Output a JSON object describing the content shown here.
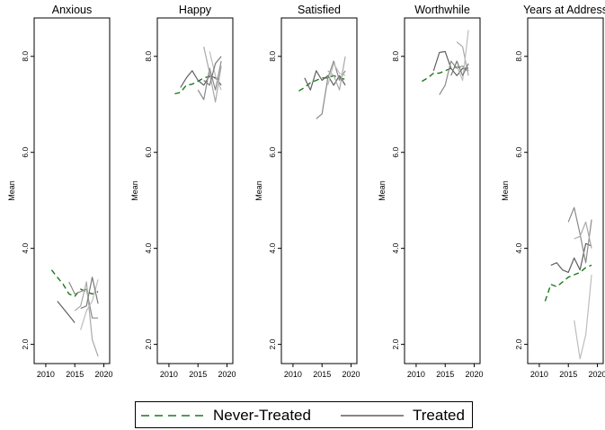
{
  "chart_data": [
    {
      "type": "line",
      "title": "Anxious",
      "ylabel": "Mean",
      "xlim": [
        2008,
        2021
      ],
      "ylim": [
        1.6,
        8.8
      ],
      "xticks": [
        "2010",
        "2015",
        "2020"
      ],
      "yticks": [
        "2.0",
        "4.0",
        "6.0",
        "8.0"
      ],
      "series": [
        {
          "group": "never",
          "values": [
            [
              2011,
              3.55
            ],
            [
              2012,
              3.4
            ],
            [
              2013,
              3.25
            ],
            [
              2014,
              3.05
            ],
            [
              2015,
              3.0
            ],
            [
              2016,
              3.15
            ],
            [
              2017,
              3.1
            ],
            [
              2018,
              3.05
            ],
            [
              2019,
              3.1
            ]
          ]
        },
        {
          "group": "treated",
          "values": [
            [
              2012,
              2.9
            ],
            [
              2013,
              2.75
            ],
            [
              2014,
              2.6
            ],
            [
              2015,
              2.45
            ]
          ]
        },
        {
          "group": "treated",
          "values": [
            [
              2014,
              3.3
            ],
            [
              2015,
              3.05
            ],
            [
              2016,
              3.1
            ],
            [
              2017,
              3.15
            ],
            [
              2018,
              2.55
            ],
            [
              2019,
              2.55
            ]
          ]
        },
        {
          "group": "treated",
          "values": [
            [
              2015,
              2.7
            ],
            [
              2016,
              2.8
            ],
            [
              2017,
              3.3
            ],
            [
              2018,
              2.1
            ],
            [
              2019,
              1.75
            ]
          ]
        },
        {
          "group": "treated",
          "values": [
            [
              2016,
              2.3
            ],
            [
              2017,
              2.7
            ],
            [
              2018,
              2.9
            ],
            [
              2019,
              3.35
            ]
          ]
        },
        {
          "group": "treated",
          "values": [
            [
              2016,
              2.75
            ],
            [
              2017,
              2.8
            ],
            [
              2018,
              3.4
            ],
            [
              2019,
              2.85
            ]
          ]
        }
      ]
    },
    {
      "type": "line",
      "title": "Happy",
      "ylabel": "Mean",
      "xlim": [
        2008,
        2021
      ],
      "ylim": [
        1.6,
        8.8
      ],
      "xticks": [
        "2010",
        "2015",
        "2020"
      ],
      "yticks": [
        "2.0",
        "4.0",
        "6.0",
        "8.0"
      ],
      "series": [
        {
          "group": "never",
          "values": [
            [
              2011,
              7.22
            ],
            [
              2012,
              7.25
            ],
            [
              2013,
              7.4
            ],
            [
              2014,
              7.42
            ],
            [
              2015,
              7.48
            ],
            [
              2016,
              7.55
            ],
            [
              2017,
              7.58
            ],
            [
              2018,
              7.55
            ],
            [
              2019,
              7.5
            ]
          ]
        },
        {
          "group": "treated",
          "values": [
            [
              2012,
              7.35
            ],
            [
              2013,
              7.55
            ],
            [
              2014,
              7.7
            ],
            [
              2015,
              7.5
            ],
            [
              2016,
              7.4
            ],
            [
              2017,
              7.6
            ],
            [
              2018,
              7.55
            ],
            [
              2019,
              7.4
            ]
          ]
        },
        {
          "group": "treated",
          "values": [
            [
              2015,
              7.3
            ],
            [
              2016,
              7.1
            ],
            [
              2017,
              7.75
            ],
            [
              2018,
              7.3
            ],
            [
              2019,
              7.9
            ]
          ]
        },
        {
          "group": "treated",
          "values": [
            [
              2016,
              8.2
            ],
            [
              2017,
              7.65
            ],
            [
              2018,
              7.05
            ],
            [
              2019,
              7.8
            ]
          ]
        },
        {
          "group": "treated",
          "values": [
            [
              2017,
              8.1
            ],
            [
              2018,
              7.6
            ],
            [
              2019,
              7.3
            ]
          ]
        },
        {
          "group": "treated",
          "values": [
            [
              2016,
              7.5
            ],
            [
              2017,
              7.4
            ],
            [
              2018,
              7.85
            ],
            [
              2019,
              8.0
            ]
          ]
        }
      ]
    },
    {
      "type": "line",
      "title": "Satisfied",
      "ylabel": "Mean",
      "xlim": [
        2008,
        2021
      ],
      "ylim": [
        1.6,
        8.8
      ],
      "xticks": [
        "2010",
        "2015",
        "2020"
      ],
      "yticks": [
        "2.0",
        "4.0",
        "6.0",
        "8.0"
      ],
      "series": [
        {
          "group": "never",
          "values": [
            [
              2011,
              7.28
            ],
            [
              2012,
              7.35
            ],
            [
              2013,
              7.45
            ],
            [
              2014,
              7.5
            ],
            [
              2015,
              7.55
            ],
            [
              2016,
              7.55
            ],
            [
              2017,
              7.6
            ],
            [
              2018,
              7.55
            ],
            [
              2019,
              7.52
            ]
          ]
        },
        {
          "group": "treated",
          "values": [
            [
              2012,
              7.55
            ],
            [
              2013,
              7.3
            ],
            [
              2014,
              7.7
            ],
            [
              2015,
              7.5
            ],
            [
              2016,
              7.6
            ],
            [
              2017,
              7.4
            ],
            [
              2018,
              7.6
            ],
            [
              2019,
              7.4
            ]
          ]
        },
        {
          "group": "treated",
          "values": [
            [
              2014,
              6.7
            ],
            [
              2015,
              6.8
            ],
            [
              2016,
              7.55
            ],
            [
              2017,
              7.9
            ],
            [
              2018,
              7.5
            ],
            [
              2019,
              7.7
            ]
          ]
        },
        {
          "group": "treated",
          "values": [
            [
              2016,
              7.7
            ],
            [
              2017,
              7.6
            ],
            [
              2018,
              7.3
            ],
            [
              2019,
              8.0
            ]
          ]
        },
        {
          "group": "treated",
          "values": [
            [
              2016,
              7.4
            ],
            [
              2017,
              7.85
            ],
            [
              2018,
              7.65
            ],
            [
              2019,
              7.6
            ]
          ]
        }
      ]
    },
    {
      "type": "line",
      "title": "Worthwhile",
      "ylabel": "Mean",
      "xlim": [
        2008,
        2021
      ],
      "ylim": [
        1.6,
        8.8
      ],
      "xticks": [
        "2010",
        "2015",
        "2020"
      ],
      "yticks": [
        "2.0",
        "4.0",
        "6.0",
        "8.0"
      ],
      "series": [
        {
          "group": "never",
          "values": [
            [
              2011,
              7.48
            ],
            [
              2012,
              7.55
            ],
            [
              2013,
              7.65
            ],
            [
              2014,
              7.65
            ],
            [
              2015,
              7.7
            ],
            [
              2016,
              7.75
            ],
            [
              2017,
              7.78
            ],
            [
              2018,
              7.75
            ],
            [
              2019,
              7.75
            ]
          ]
        },
        {
          "group": "treated",
          "values": [
            [
              2013,
              7.7
            ],
            [
              2014,
              8.08
            ],
            [
              2015,
              8.1
            ],
            [
              2016,
              7.75
            ],
            [
              2017,
              7.6
            ],
            [
              2018,
              7.75
            ],
            [
              2019,
              7.7
            ]
          ]
        },
        {
          "group": "treated",
          "values": [
            [
              2014,
              7.2
            ],
            [
              2015,
              7.4
            ],
            [
              2016,
              7.9
            ],
            [
              2017,
              7.75
            ],
            [
              2018,
              7.8
            ],
            [
              2019,
              7.7
            ]
          ]
        },
        {
          "group": "treated",
          "values": [
            [
              2017,
              8.3
            ],
            [
              2018,
              8.2
            ],
            [
              2019,
              7.6
            ]
          ]
        },
        {
          "group": "treated",
          "values": [
            [
              2017,
              7.8
            ],
            [
              2018,
              7.5
            ],
            [
              2019,
              8.55
            ]
          ]
        },
        {
          "group": "treated",
          "values": [
            [
              2016,
              7.6
            ],
            [
              2017,
              7.9
            ],
            [
              2018,
              7.6
            ],
            [
              2019,
              7.85
            ]
          ]
        }
      ]
    },
    {
      "type": "line",
      "title": "Years at Address",
      "ylabel": "Mean",
      "xlim": [
        2008,
        2021
      ],
      "ylim": [
        1.6,
        8.8
      ],
      "xticks": [
        "2010",
        "2015",
        "2020"
      ],
      "yticks": [
        "2.0",
        "4.0",
        "6.0",
        "8.0"
      ],
      "series": [
        {
          "group": "never",
          "values": [
            [
              2011,
              2.9
            ],
            [
              2012,
              3.25
            ],
            [
              2013,
              3.2
            ],
            [
              2014,
              3.3
            ],
            [
              2015,
              3.4
            ],
            [
              2016,
              3.45
            ],
            [
              2017,
              3.5
            ],
            [
              2018,
              3.6
            ],
            [
              2019,
              3.65
            ]
          ]
        },
        {
          "group": "treated",
          "values": [
            [
              2012,
              3.65
            ],
            [
              2013,
              3.7
            ],
            [
              2014,
              3.55
            ],
            [
              2015,
              3.5
            ],
            [
              2016,
              3.8
            ],
            [
              2017,
              3.55
            ],
            [
              2018,
              4.1
            ],
            [
              2019,
              4.05
            ]
          ]
        },
        {
          "group": "treated",
          "values": [
            [
              2015,
              4.55
            ],
            [
              2016,
              4.85
            ],
            [
              2017,
              4.3
            ],
            [
              2018,
              3.7
            ],
            [
              2019,
              4.6
            ]
          ]
        },
        {
          "group": "treated",
          "values": [
            [
              2016,
              4.2
            ],
            [
              2017,
              4.25
            ],
            [
              2018,
              4.55
            ],
            [
              2019,
              4.0
            ]
          ]
        },
        {
          "group": "treated",
          "values": [
            [
              2016,
              2.5
            ],
            [
              2017,
              1.7
            ],
            [
              2018,
              2.2
            ],
            [
              2019,
              3.45
            ]
          ]
        }
      ]
    }
  ],
  "legend": {
    "never_label": "Never-Treated",
    "treated_label": "Treated"
  },
  "colors": {
    "never": "#1b7a1b",
    "treated_shades": [
      "#5f5f5f",
      "#8a8a8a",
      "#a9a9a9",
      "#bdbdbd",
      "#7a7a7a",
      "#9a9a9a"
    ],
    "frame": "#000000"
  }
}
